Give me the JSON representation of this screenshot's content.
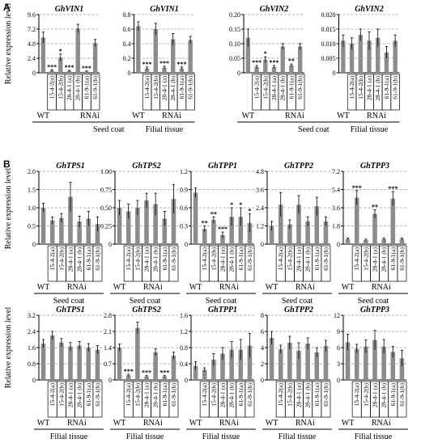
{
  "panel_labels": [
    "A",
    "B"
  ],
  "ylabel": "Relative expression level",
  "group_labels": {
    "wt": "WT",
    "rnai": "RNAi"
  },
  "tissue_labels": {
    "seed": "Seed coat",
    "filial": "Filial tissue"
  },
  "categories": [
    "WT",
    "15-4-2(a)",
    "15-4-2(b)",
    "28-4-1 (a)",
    "28-4-1 (b)",
    "61-9-1(a)",
    "61-9-1(b)"
  ],
  "chart_data": [
    {
      "panel": "A",
      "row": 0,
      "pos": 0,
      "type": "bar",
      "title": "GhVIN1",
      "tissue": "seed",
      "ylim": [
        0,
        9.6
      ],
      "yticks": [
        "0",
        "2.4",
        "4.8",
        "7.2",
        "9.6"
      ],
      "values": [
        5.8,
        0.35,
        2.5,
        0.3,
        7.3,
        0.2,
        4.9
      ],
      "errors": [
        0.9,
        0.15,
        0.6,
        0.1,
        0.7,
        0.1,
        0.6
      ],
      "significance": [
        "",
        "***",
        "*",
        "***",
        "",
        "***",
        ""
      ]
    },
    {
      "panel": "A",
      "row": 0,
      "pos": 1,
      "type": "bar",
      "title": "GhVIN1",
      "tissue": "filial",
      "ylim": [
        0,
        0.8
      ],
      "yticks": [
        "0",
        "0.2",
        "0.4",
        "0.6",
        "0.8"
      ],
      "values": [
        0.64,
        0.06,
        0.6,
        0.07,
        0.46,
        0.06,
        0.45
      ],
      "errors": [
        0.06,
        0.02,
        0.08,
        0.02,
        0.08,
        0.02,
        0.05
      ],
      "significance": [
        "",
        "***",
        "",
        "***",
        "",
        "***",
        ""
      ]
    },
    {
      "panel": "A",
      "row": 0,
      "pos": 2,
      "type": "bar",
      "title": "GhVIN2",
      "tissue": "seed",
      "ylim": [
        0,
        0.2
      ],
      "yticks": [
        "0",
        "0.05",
        "0.10",
        "0.15",
        "0.20"
      ],
      "values": [
        0.12,
        0.02,
        0.045,
        0.02,
        0.09,
        0.025,
        0.09
      ],
      "errors": [
        0.03,
        0.005,
        0.01,
        0.005,
        0.01,
        0.005,
        0.01
      ],
      "significance": [
        "",
        "***",
        "*",
        "***",
        "",
        "**",
        ""
      ]
    },
    {
      "panel": "A",
      "row": 0,
      "pos": 3,
      "type": "bar",
      "title": "GhVIN2",
      "tissue": "filial",
      "ylim": [
        0,
        0.02
      ],
      "yticks": [
        "0",
        "0.005",
        "0.010",
        "0.015",
        "0.020"
      ],
      "values": [
        0.011,
        0.01,
        0.013,
        0.011,
        0.012,
        0.007,
        0.011
      ],
      "errors": [
        0.002,
        0.002,
        0.002,
        0.003,
        0.003,
        0.002,
        0.002
      ],
      "significance": [
        "",
        "",
        "",
        "",
        "",
        "",
        ""
      ]
    },
    {
      "panel": "B",
      "row": 1,
      "pos": 0,
      "type": "bar",
      "title": "GhTPS1",
      "tissue": "seed",
      "ylim": [
        0,
        2.0
      ],
      "yticks": [
        "0",
        "0.5",
        "1.0",
        "1.5",
        "2.0"
      ],
      "values": [
        1.0,
        0.65,
        0.72,
        1.3,
        0.62,
        0.7,
        0.55
      ],
      "errors": [
        0.12,
        0.1,
        0.12,
        0.4,
        0.15,
        0.2,
        0.2
      ],
      "significance": [
        "",
        "",
        "",
        "",
        "",
        "",
        ""
      ]
    },
    {
      "panel": "B",
      "row": 1,
      "pos": 1,
      "type": "bar",
      "title": "GhTPS2",
      "tissue": "seed",
      "ylim": [
        0,
        1.0
      ],
      "yticks": [
        "0",
        "0.25",
        "0.50",
        "0.75",
        "1.00"
      ],
      "values": [
        0.5,
        0.45,
        0.5,
        0.6,
        0.55,
        0.35,
        0.62
      ],
      "errors": [
        0.1,
        0.1,
        0.1,
        0.1,
        0.15,
        0.1,
        0.2
      ],
      "significance": [
        "",
        "",
        "",
        "",
        "",
        "",
        ""
      ]
    },
    {
      "panel": "B",
      "row": 1,
      "pos": 2,
      "type": "bar",
      "title": "GhTPP1",
      "tissue": "seed",
      "ylim": [
        0,
        1.2
      ],
      "yticks": [
        "0",
        "0.3",
        "0.6",
        "0.9",
        "1.2"
      ],
      "values": [
        0.85,
        0.25,
        0.4,
        0.15,
        0.45,
        0.45,
        0.35
      ],
      "errors": [
        0.08,
        0.05,
        0.05,
        0.05,
        0.15,
        0.15,
        0.15
      ],
      "significance": [
        "",
        "**",
        "**",
        "***",
        "*",
        "*",
        "*"
      ]
    },
    {
      "panel": "B",
      "row": 1,
      "pos": 3,
      "type": "bar",
      "title": "GhTPP2",
      "tissue": "seed",
      "ylim": [
        0,
        4.8
      ],
      "yticks": [
        "0",
        "1.2",
        "2.4",
        "3.6",
        "4.8"
      ],
      "values": [
        1.2,
        2.6,
        1.3,
        2.6,
        1.5,
        2.5,
        1.5
      ],
      "errors": [
        0.3,
        0.8,
        0.3,
        0.6,
        0.3,
        0.6,
        0.3
      ],
      "significance": [
        "",
        "",
        "",
        "",
        "",
        "",
        ""
      ]
    },
    {
      "panel": "B",
      "row": 1,
      "pos": 4,
      "type": "bar",
      "title": "GhTPP3",
      "tissue": "seed",
      "ylim": [
        0,
        7.2
      ],
      "yticks": [
        "0",
        "1.8",
        "3.6",
        "5.4",
        "7.2"
      ],
      "values": [
        0.5,
        4.6,
        0.4,
        3.0,
        0.5,
        4.5,
        0.5
      ],
      "errors": [
        0.1,
        0.7,
        0.1,
        0.4,
        0.1,
        0.7,
        0.1
      ],
      "significance": [
        "",
        "***",
        "",
        "**",
        "",
        "***",
        ""
      ]
    },
    {
      "panel": "B",
      "row": 2,
      "pos": 0,
      "type": "bar",
      "title": "GhTPS1",
      "tissue": "filial",
      "ylim": [
        0,
        3.2
      ],
      "yticks": [
        "0",
        "0.8",
        "1.6",
        "2.4",
        "3.2"
      ],
      "values": [
        1.8,
        2.2,
        1.85,
        1.65,
        1.7,
        1.6,
        1.5
      ],
      "errors": [
        0.2,
        0.2,
        0.2,
        0.2,
        0.2,
        0.2,
        0.2
      ],
      "significance": [
        "",
        "",
        "",
        "",
        "",
        "",
        ""
      ]
    },
    {
      "panel": "B",
      "row": 2,
      "pos": 1,
      "type": "bar",
      "title": "GhTPS2",
      "tissue": "filial",
      "ylim": [
        0,
        2.8
      ],
      "yticks": [
        "0",
        "0.7",
        "1.4",
        "2.1",
        "2.8"
      ],
      "values": [
        1.4,
        0.2,
        2.25,
        0.15,
        1.2,
        0.15,
        1.05
      ],
      "errors": [
        0.15,
        0.05,
        0.25,
        0.05,
        0.15,
        0.05,
        0.15
      ],
      "significance": [
        "",
        "***",
        "",
        "***",
        "",
        "***",
        ""
      ]
    },
    {
      "panel": "B",
      "row": 2,
      "pos": 2,
      "type": "bar",
      "title": "GhTPP1",
      "tissue": "filial",
      "ylim": [
        0,
        1.6
      ],
      "yticks": [
        "0",
        "0.4",
        "0.8",
        "1.2",
        "1.6"
      ],
      "values": [
        0.35,
        0.25,
        0.5,
        0.65,
        0.75,
        0.75,
        0.85
      ],
      "errors": [
        0.1,
        0.05,
        0.15,
        0.15,
        0.2,
        0.25,
        0.3
      ],
      "significance": [
        "",
        "",
        "",
        "",
        "",
        "",
        ""
      ]
    },
    {
      "panel": "B",
      "row": 2,
      "pos": 3,
      "type": "bar",
      "title": "GhTPP2",
      "tissue": "filial",
      "ylim": [
        0,
        8
      ],
      "yticks": [
        "0",
        "2",
        "4",
        "6",
        "8"
      ],
      "values": [
        5.2,
        3.8,
        4.6,
        3.6,
        4.5,
        3.4,
        4.2
      ],
      "errors": [
        0.8,
        0.5,
        0.8,
        1.0,
        0.7,
        0.6,
        0.7
      ],
      "significance": [
        "",
        "",
        "",
        "",
        "",
        "",
        ""
      ]
    },
    {
      "panel": "B",
      "row": 2,
      "pos": 4,
      "type": "bar",
      "title": "GhTPP3",
      "tissue": "filial",
      "ylim": [
        0,
        12
      ],
      "yticks": [
        "0",
        "3",
        "6",
        "9",
        "12"
      ],
      "values": [
        7.0,
        5.8,
        6.2,
        7.4,
        6.2,
        5.2,
        4.0
      ],
      "errors": [
        1.5,
        0.8,
        1.2,
        1.8,
        1.3,
        1.0,
        1.5
      ],
      "significance": [
        "",
        "",
        "",
        "",
        "",
        "",
        ""
      ]
    }
  ],
  "colors": {
    "bar": "#8c8c8c",
    "grid": "#9a9a9a",
    "axis": "#000000"
  }
}
